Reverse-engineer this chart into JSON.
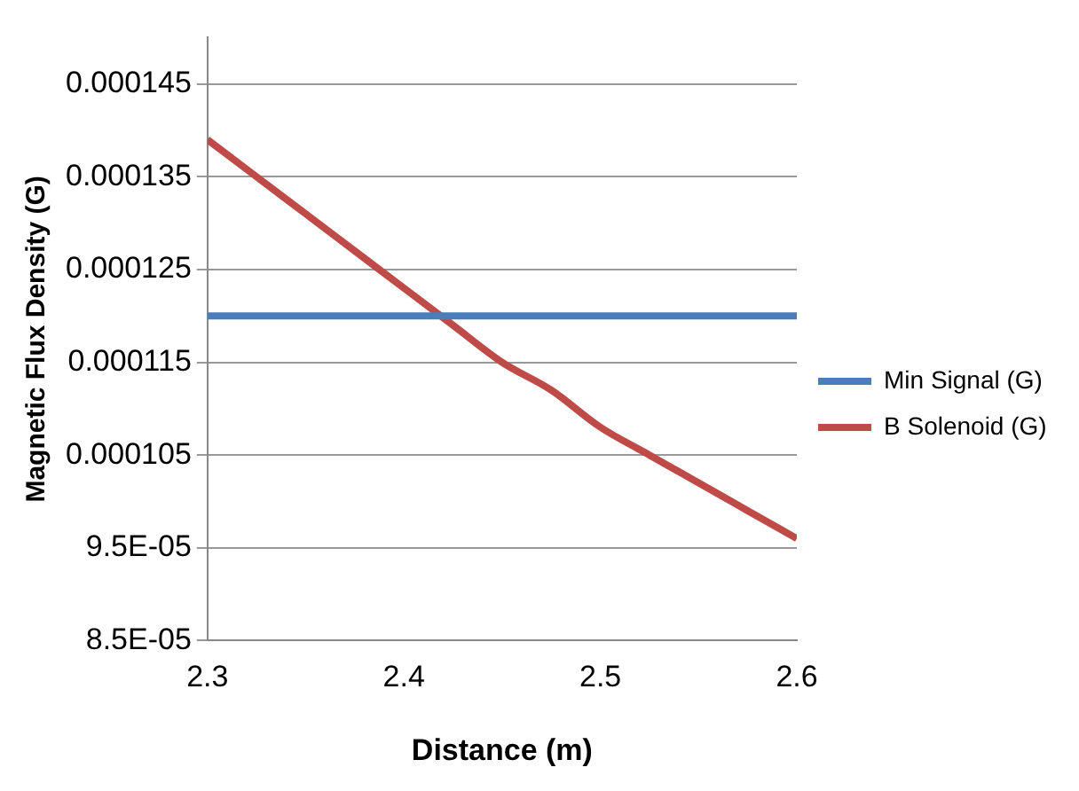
{
  "chart_data": {
    "type": "line",
    "xlabel": "Distance (m)",
    "ylabel": "Magnetic Flux Density (G)",
    "xlim": [
      2.3,
      2.6
    ],
    "xticks": [
      2.3,
      2.4,
      2.5,
      2.6
    ],
    "ylim": [
      8.5e-05,
      0.00015
    ],
    "yticks": [
      {
        "value": 8.5e-05,
        "label": "8.5E-05"
      },
      {
        "value": 9.5e-05,
        "label": "9.5E-05"
      },
      0.000105,
      0.000115,
      0.000125,
      0.000135,
      0.000145
    ],
    "grid": "y",
    "legend": "right",
    "marker": "none",
    "series": [
      {
        "name": "Min Signal (G)",
        "color": "#4a7ebb",
        "x": [
          2.3,
          2.6
        ],
        "values": [
          0.00012,
          0.00012
        ]
      },
      {
        "name": "B Solenoid (G)",
        "color": "#be4b48",
        "x": [
          2.3,
          2.325,
          2.35,
          2.375,
          2.4,
          2.425,
          2.45,
          2.475,
          2.5,
          2.525,
          2.55,
          2.575,
          2.6
        ],
        "values": [
          0.000139,
          0.000135,
          0.000131,
          0.000127,
          0.000123,
          0.000119,
          0.000115,
          0.000112,
          0.000108,
          0.000105,
          0.000102,
          9.9e-05,
          9.6e-05
        ]
      }
    ]
  }
}
